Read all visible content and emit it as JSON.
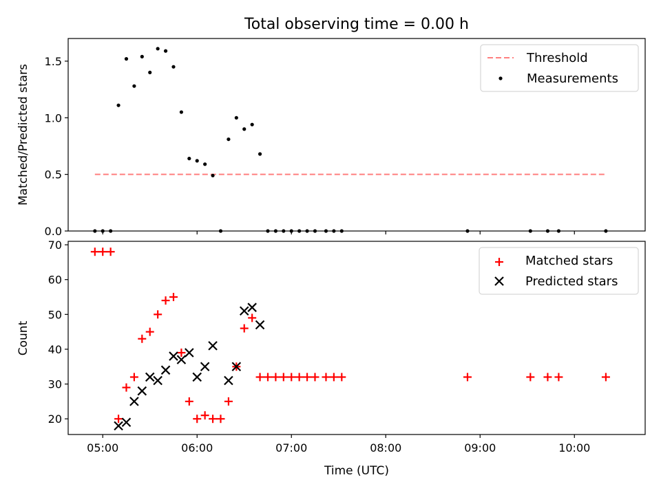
{
  "figure_title": "Total observing time = 0.00 h",
  "chart_data": [
    {
      "type": "scatter",
      "ylabel": "Matched/Predicted stars",
      "xlim": [
        "04:38",
        "10:45"
      ],
      "ylim": [
        0,
        1.7
      ],
      "y_ticks": [
        "0.0",
        "0.5",
        "1.0",
        "1.5"
      ],
      "threshold": {
        "name": "Threshold",
        "y": 0.5,
        "x_range": [
          "04:55",
          "10:20"
        ],
        "color": "#ff7f7f"
      },
      "series": [
        {
          "name": "Measurements",
          "color": "#000000",
          "points": [
            [
              "04:55",
              0
            ],
            [
              "05:00",
              0
            ],
            [
              "05:05",
              0
            ],
            [
              "05:10",
              1.11
            ],
            [
              "05:15",
              1.52
            ],
            [
              "05:20",
              1.28
            ],
            [
              "05:25",
              1.54
            ],
            [
              "05:30",
              1.4
            ],
            [
              "05:35",
              1.61
            ],
            [
              "05:40",
              1.59
            ],
            [
              "05:45",
              1.45
            ],
            [
              "05:50",
              1.05
            ],
            [
              "05:55",
              0.64
            ],
            [
              "06:00",
              0.62
            ],
            [
              "06:05",
              0.59
            ],
            [
              "06:10",
              0.49
            ],
            [
              "06:15",
              0
            ],
            [
              "06:20",
              0.81
            ],
            [
              "06:25",
              1.0
            ],
            [
              "06:30",
              0.9
            ],
            [
              "06:35",
              0.94
            ],
            [
              "06:40",
              0.68
            ],
            [
              "06:45",
              0
            ],
            [
              "06:50",
              0
            ],
            [
              "06:55",
              0
            ],
            [
              "07:00",
              0
            ],
            [
              "07:05",
              0
            ],
            [
              "07:10",
              0
            ],
            [
              "07:15",
              0
            ],
            [
              "07:22",
              0
            ],
            [
              "07:27",
              0
            ],
            [
              "07:32",
              0
            ],
            [
              "08:52",
              0
            ],
            [
              "09:32",
              0
            ],
            [
              "09:43",
              0
            ],
            [
              "09:50",
              0
            ],
            [
              "10:20",
              0
            ]
          ]
        }
      ]
    },
    {
      "type": "scatter",
      "xlabel": "Time (UTC)",
      "ylabel": "Count",
      "xlim": [
        "04:38",
        "10:45"
      ],
      "ylim": [
        15.5,
        71
      ],
      "y_ticks": [
        "20",
        "30",
        "40",
        "50",
        "60",
        "70"
      ],
      "x_ticks": [
        "05:00",
        "06:00",
        "07:00",
        "08:00",
        "09:00",
        "10:00"
      ],
      "series": [
        {
          "name": "Matched stars",
          "marker": "+",
          "color": "#ff0000",
          "points": [
            [
              "04:55",
              68
            ],
            [
              "05:00",
              68
            ],
            [
              "05:05",
              68
            ],
            [
              "05:10",
              20
            ],
            [
              "05:15",
              29
            ],
            [
              "05:20",
              32
            ],
            [
              "05:25",
              43
            ],
            [
              "05:30",
              45
            ],
            [
              "05:35",
              50
            ],
            [
              "05:40",
              54
            ],
            [
              "05:45",
              55
            ],
            [
              "05:50",
              39
            ],
            [
              "05:55",
              25
            ],
            [
              "06:00",
              20
            ],
            [
              "06:05",
              21
            ],
            [
              "06:10",
              20
            ],
            [
              "06:15",
              20
            ],
            [
              "06:20",
              25
            ],
            [
              "06:25",
              35
            ],
            [
              "06:30",
              46
            ],
            [
              "06:35",
              49
            ],
            [
              "06:40",
              32
            ],
            [
              "06:45",
              32
            ],
            [
              "06:50",
              32
            ],
            [
              "06:55",
              32
            ],
            [
              "07:00",
              32
            ],
            [
              "07:05",
              32
            ],
            [
              "07:10",
              32
            ],
            [
              "07:15",
              32
            ],
            [
              "07:22",
              32
            ],
            [
              "07:27",
              32
            ],
            [
              "07:32",
              32
            ],
            [
              "08:52",
              32
            ],
            [
              "09:32",
              32
            ],
            [
              "09:43",
              32
            ],
            [
              "09:50",
              32
            ],
            [
              "10:20",
              32
            ]
          ]
        },
        {
          "name": "Predicted stars",
          "marker": "x",
          "color": "#000000",
          "points": [
            [
              "05:10",
              18
            ],
            [
              "05:15",
              19
            ],
            [
              "05:20",
              25
            ],
            [
              "05:25",
              28
            ],
            [
              "05:30",
              32
            ],
            [
              "05:35",
              31
            ],
            [
              "05:40",
              34
            ],
            [
              "05:45",
              38
            ],
            [
              "05:50",
              37
            ],
            [
              "05:55",
              39
            ],
            [
              "06:00",
              32
            ],
            [
              "06:05",
              35
            ],
            [
              "06:10",
              41
            ],
            [
              "06:20",
              31
            ],
            [
              "06:25",
              35
            ],
            [
              "06:30",
              51
            ],
            [
              "06:35",
              52
            ],
            [
              "06:40",
              47
            ]
          ]
        }
      ]
    }
  ]
}
